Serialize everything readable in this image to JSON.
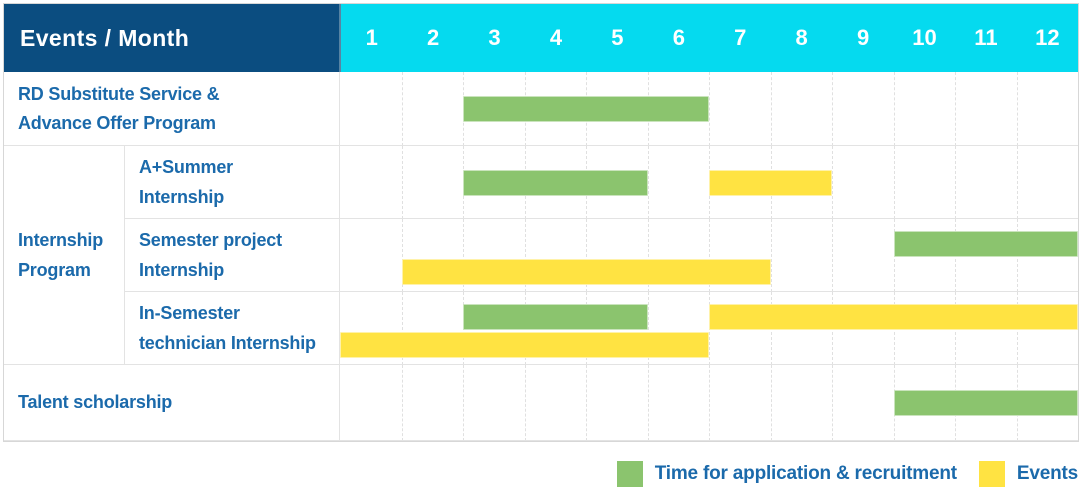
{
  "header": {
    "title": "Events / Month"
  },
  "colors": {
    "navy": "#0B4D80",
    "cyan": "#05DAEF",
    "green": "#8BC46E",
    "yellow": "#FFE342",
    "label_blue": "#1B6AAB",
    "grid_line": "#E3E3E3"
  },
  "chart_data": {
    "type": "bar",
    "subtype": "gantt",
    "title": "Events / Month",
    "x": {
      "label": "Month",
      "ticks": [
        "1",
        "2",
        "3",
        "4",
        "5",
        "6",
        "7",
        "8",
        "9",
        "10",
        "11",
        "12"
      ],
      "range": [
        1,
        12
      ]
    },
    "grid": "dashed-vertical-month-lines",
    "legend_position": "bottom-right",
    "series_legend": [
      {
        "name": "Time for application & recruitment",
        "color": "#8BC46E"
      },
      {
        "name": "Events",
        "color": "#FFE342"
      }
    ],
    "rows": [
      {
        "group": null,
        "label": "RD Substitute Service &\nAdvance Offer Program",
        "bars": [
          {
            "series": "Time for application & recruitment",
            "start_month": 3,
            "end_month": 6,
            "track": "middle"
          }
        ]
      },
      {
        "group": "Internship\nProgram",
        "label": "A+Summer\nInternship",
        "bars": [
          {
            "series": "Time for application & recruitment",
            "start_month": 3,
            "end_month": 5,
            "track": "middle"
          },
          {
            "series": "Events",
            "start_month": 7,
            "end_month": 8,
            "track": "middle"
          }
        ]
      },
      {
        "group": "Internship\nProgram",
        "label": "Semester project\nInternship",
        "bars": [
          {
            "series": "Time for application & recruitment",
            "start_month": 10,
            "end_month": 12,
            "track": "top"
          },
          {
            "series": "Events",
            "start_month": 2,
            "end_month": 7,
            "track": "bottom"
          }
        ]
      },
      {
        "group": "Internship\nProgram",
        "label": "In-Semester\ntechnician Internship",
        "bars": [
          {
            "series": "Time for application & recruitment",
            "start_month": 3,
            "end_month": 5,
            "track": "top"
          },
          {
            "series": "Events",
            "start_month": 7,
            "end_month": 12,
            "track": "top"
          },
          {
            "series": "Events",
            "start_month": 1,
            "end_month": 6,
            "track": "bottom"
          }
        ]
      },
      {
        "group": null,
        "label": "Talent scholarship",
        "bars": [
          {
            "series": "Time for application & recruitment",
            "start_month": 10,
            "end_month": 12,
            "track": "middle"
          }
        ]
      }
    ]
  }
}
